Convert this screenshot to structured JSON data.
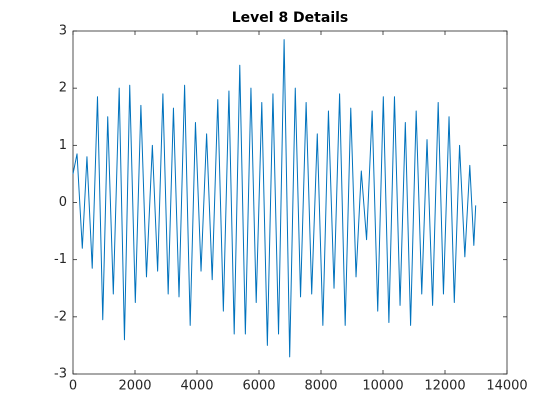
{
  "chart_data": {
    "type": "line",
    "title": "Level 8 Details",
    "x": [
      0,
      130,
      300,
      450,
      620,
      790,
      960,
      1120,
      1300,
      1490,
      1660,
      1830,
      2010,
      2190,
      2370,
      2560,
      2730,
      2900,
      3070,
      3240,
      3420,
      3600,
      3780,
      3950,
      4130,
      4310,
      4490,
      4670,
      4850,
      5030,
      5200,
      5380,
      5560,
      5740,
      5910,
      6090,
      6270,
      6450,
      6630,
      6810,
      6990,
      7170,
      7340,
      7520,
      7700,
      7880,
      8060,
      8240,
      8420,
      8600,
      8780,
      8960,
      9130,
      9300,
      9470,
      9650,
      9830,
      10010,
      10190,
      10370,
      10550,
      10720,
      10890,
      11070,
      11250,
      11420,
      11600,
      11780,
      11950,
      12130,
      12300,
      12470,
      12640,
      12800,
      12930,
      12990
    ],
    "series": [
      {
        "color": "#0072bd",
        "values": [
          0.5,
          0.85,
          -0.8,
          0.8,
          -1.15,
          1.85,
          -2.05,
          1.5,
          -1.6,
          2.0,
          -2.4,
          2.05,
          -1.75,
          1.7,
          -1.3,
          1.0,
          -1.2,
          1.9,
          -1.6,
          1.65,
          -1.65,
          2.05,
          -2.15,
          1.4,
          -1.2,
          1.2,
          -1.35,
          1.8,
          -1.9,
          1.95,
          -2.3,
          2.4,
          -2.3,
          2.0,
          -1.75,
          1.75,
          -2.5,
          1.9,
          -2.3,
          2.85,
          -2.7,
          2.0,
          -1.65,
          1.75,
          -1.6,
          1.2,
          -2.15,
          1.6,
          -1.5,
          1.9,
          -2.15,
          1.65,
          -1.3,
          0.55,
          -0.65,
          1.6,
          -1.9,
          1.85,
          -2.1,
          1.85,
          -1.8,
          1.4,
          -2.15,
          1.6,
          -1.6,
          1.1,
          -1.8,
          1.75,
          -1.6,
          1.5,
          -1.75,
          1.0,
          -0.95,
          0.65,
          -0.75,
          -0.05
        ]
      }
    ],
    "xlim": [
      0,
      14000
    ],
    "xticks": [
      0,
      2000,
      4000,
      6000,
      8000,
      10000,
      12000,
      14000
    ],
    "ylim": [
      -3,
      3
    ],
    "yticks": [
      -3,
      -2,
      -1,
      0,
      1,
      2,
      3
    ]
  }
}
